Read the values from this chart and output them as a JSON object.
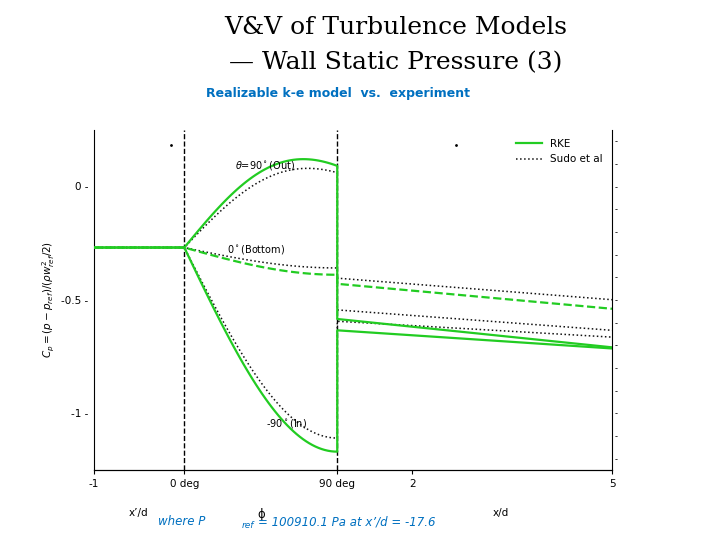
{
  "title_line1": "V&V of Turbulence Models",
  "title_line2": "— Wall Static Pressure (3)",
  "subtitle": "Realizable k-e model  vs.  experiment",
  "subtitle_color": "#0070C0",
  "legend_rke": "RKE",
  "legend_sudo": "Sudo et al",
  "rke_color": "#22CC22",
  "sudo_color": "#111111",
  "background_color": "#ffffff",
  "note_color": "#0070C0",
  "t_m1": 0.0,
  "t_0deg": 0.175,
  "t_90deg": 0.47,
  "t_2": 0.615,
  "t_5": 1.0
}
